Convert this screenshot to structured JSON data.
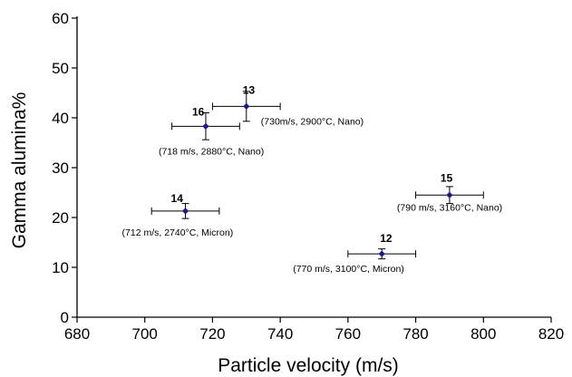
{
  "chart_data": {
    "type": "scatter",
    "title": "",
    "xlabel": "Particle velocity (m/s)",
    "ylabel": "Gamma alumina%",
    "xlim": [
      680,
      820
    ],
    "ylim": [
      0,
      60
    ],
    "xticks": [
      "680",
      "700",
      "720",
      "740",
      "760",
      "780",
      "800",
      "820"
    ],
    "yticks": [
      "0",
      "10",
      "20",
      "30",
      "40",
      "50",
      "60"
    ],
    "grid": false,
    "legend": "none",
    "marker_color": "#1a1a8c",
    "points": [
      {
        "id": "13",
        "note": "(730m/s, 2900°C, Nano)",
        "x": 730,
        "y": 42.3,
        "xerr": 10,
        "yerr": 3
      },
      {
        "id": "16",
        "note": "(718 m/s, 2880°C, Nano)",
        "x": 718,
        "y": 38.3,
        "xerr": 10,
        "yerr": 2.7
      },
      {
        "id": "14",
        "note": "(712 m/s, 2740°C, Micron)",
        "x": 712,
        "y": 21.3,
        "xerr": 10,
        "yerr": 1.5
      },
      {
        "id": "15",
        "note": "(790 m/s, 3160°C, Nano)",
        "x": 790,
        "y": 24.5,
        "xerr": 10,
        "yerr": 1.7
      },
      {
        "id": "12",
        "note": "(770  m/s, 3100°C, Micron)",
        "x": 770,
        "y": 12.7,
        "xerr": 10,
        "yerr": 1
      }
    ]
  }
}
